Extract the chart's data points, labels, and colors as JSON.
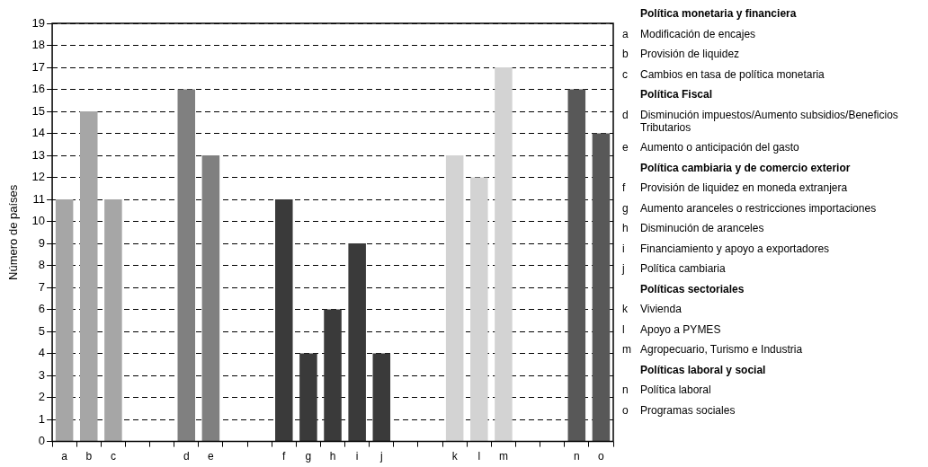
{
  "chart_data": {
    "type": "bar",
    "ylabel": "Número de países",
    "categories": [
      "a",
      "b",
      "c",
      null,
      null,
      "d",
      "e",
      null,
      null,
      "f",
      "g",
      "h",
      "i",
      "j",
      null,
      null,
      "k",
      "l",
      "m",
      null,
      null,
      "n",
      "o"
    ],
    "values": [
      11,
      15,
      11,
      null,
      null,
      16,
      13,
      null,
      null,
      11,
      4,
      6,
      9,
      4,
      null,
      null,
      13,
      12,
      17,
      null,
      null,
      16,
      14
    ],
    "colors": [
      "#a6a6a6",
      "#a6a6a6",
      "#a6a6a6",
      "#a6a6a6",
      "#a6a6a6",
      "#808080",
      "#808080",
      "#808080",
      "#808080",
      "#3a3a3a",
      "#3a3a3a",
      "#3a3a3a",
      "#3a3a3a",
      "#3a3a3a",
      "#3a3a3a",
      "#3a3a3a",
      "#d3d3d3",
      "#d3d3d3",
      "#d3d3d3",
      "#d3d3d3",
      "#d3d3d3",
      "#585858",
      "#585858"
    ],
    "ylim": [
      0,
      19
    ],
    "yticks": [
      0,
      1,
      2,
      3,
      4,
      5,
      6,
      7,
      8,
      9,
      10,
      11,
      12,
      13,
      14,
      15,
      16,
      17,
      18,
      19
    ],
    "grid": "y",
    "legend": false,
    "annotations": [
      "Política monetaria y financiera",
      "a Modificación de encajes",
      "b Provisión de liquidez",
      "c Cambios en tasa de política monetaria",
      "Política Fiscal",
      "d Disminución impuestos/Aumento subsidios/Beneficios Tributarios",
      "e Aumento o anticipación del gasto",
      "Política cambiaria y de comercio exterior",
      "f Provisión de liquidez en moneda extranjera",
      "g Aumento aranceles o restricciones importaciones",
      "h Disminución de aranceles",
      "i Financiamiento y apoyo a exportadores",
      "j Política cambiaria",
      "Políticas sectoriales",
      "k Vivienda",
      "l Apoyo a PYMES",
      "m Agropecuario, Turismo e Industria",
      "Políticas laboral y social",
      "n Política laboral",
      "o Programas sociales"
    ]
  }
}
